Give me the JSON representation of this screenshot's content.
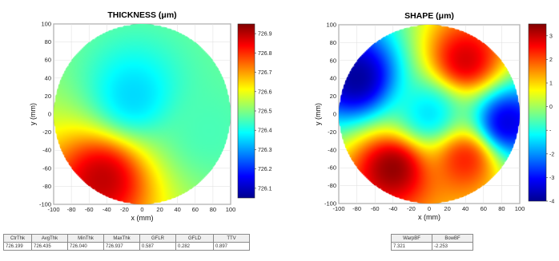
{
  "colors": {
    "colormap": [
      "#00008f",
      "#0000ff",
      "#0080ff",
      "#00ffff",
      "#80ff80",
      "#ffff00",
      "#ff8000",
      "#ff0000",
      "#800000"
    ],
    "grid": "#dddddd",
    "axis": "#333333"
  },
  "chart_data": [
    {
      "type": "heatmap",
      "title": "THICKNESS (μm)",
      "xlabel": "x (mm)",
      "ylabel": "y (mm)",
      "xlim": [
        -100,
        100
      ],
      "ylim": [
        -100,
        100
      ],
      "xticks": [
        -100,
        -80,
        -60,
        -40,
        -20,
        0,
        20,
        40,
        60,
        80,
        100
      ],
      "yticks": [
        100,
        80,
        60,
        40,
        20,
        0,
        -20,
        -40,
        -60,
        -80,
        -100
      ],
      "grid": true,
      "map_shape": "circular wafer, radius 100 mm",
      "colorbar": {
        "range": [
          726.05,
          726.95
        ],
        "ticks": [
          "726.9",
          "726.8",
          "726.7",
          "726.6",
          "726.5",
          "726.4",
          "726.3",
          "726.2",
          "726.1"
        ]
      },
      "features": [
        {
          "x": -45,
          "y": -72,
          "value": 726.9,
          "description": "hot spot, lower-left edge"
        },
        {
          "x": -10,
          "y": 20,
          "value": 726.35,
          "description": "low (blue) region, upper centre"
        },
        {
          "x": 75,
          "y": -20,
          "value": 726.45,
          "description": "cyan-green right edge"
        }
      ],
      "stats": {
        "headers": [
          "CtrThk",
          "AvgThk",
          "MinThk",
          "MaxThk",
          "GFLR",
          "GFLD",
          "TTV"
        ],
        "values": [
          "726.199",
          "726.435",
          "726.040",
          "726.937",
          "0.587",
          "0.282",
          "0.897"
        ]
      }
    },
    {
      "type": "heatmap",
      "title": "SHAPE (μm)",
      "xlabel": "x (mm)",
      "ylabel": "y (mm)",
      "xlim": [
        -100,
        100
      ],
      "ylim": [
        -100,
        100
      ],
      "xticks": [
        -100,
        -80,
        -60,
        -40,
        -20,
        0,
        20,
        40,
        60,
        80,
        100
      ],
      "yticks": [
        100,
        80,
        60,
        40,
        20,
        0,
        -20,
        -40,
        -60,
        -80,
        -100
      ],
      "grid": true,
      "map_shape": "circular wafer, radius 100 mm",
      "colorbar": {
        "range": [
          -4,
          3.5
        ],
        "ticks": [
          "3",
          "2",
          "1",
          "0",
          "-1",
          "-2",
          "-3",
          "-4"
        ],
        "tick_labels_visible": [
          "3",
          "2",
          "1",
          "0",
          "-",
          "-2",
          "-3",
          "-4"
        ]
      },
      "features": [
        {
          "x": -40,
          "y": -60,
          "value": 3.5,
          "description": "high (red), lower-left"
        },
        {
          "x": 40,
          "y": 60,
          "value": 3.0,
          "description": "high (orange-red), upper-right"
        },
        {
          "x": 40,
          "y": -50,
          "value": 2.5,
          "description": "orange, lower-right"
        },
        {
          "x": -80,
          "y": 40,
          "value": -4,
          "description": "low (dark blue), left edge"
        },
        {
          "x": 85,
          "y": -10,
          "value": -3.5,
          "description": "low (blue), right edge"
        },
        {
          "x": 0,
          "y": 0,
          "value": -1.5,
          "description": "cyan-blue band through centre"
        }
      ],
      "stats": {
        "headers": [
          "WarpBF",
          "BowBF"
        ],
        "values": [
          "7.321",
          "-2.253"
        ]
      }
    }
  ]
}
